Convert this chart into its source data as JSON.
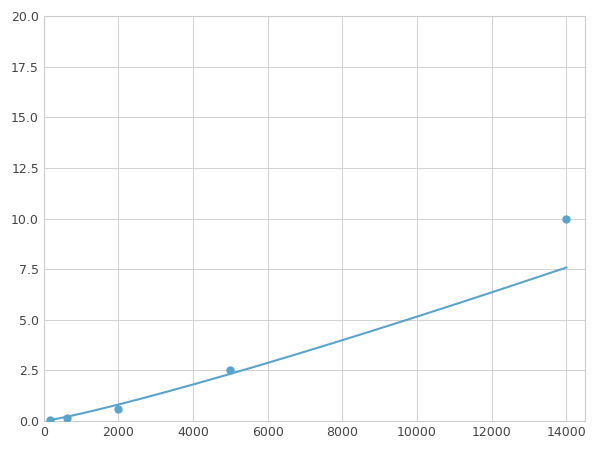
{
  "x_points": [
    156,
    625,
    2000,
    5000,
    14000
  ],
  "y_points": [
    0.07,
    0.13,
    0.6,
    2.5,
    10.0
  ],
  "line_color": "#5BA3C9",
  "marker_color": "#5BA3C9",
  "marker_size": 5,
  "xlim": [
    0,
    14500
  ],
  "ylim": [
    0,
    20
  ],
  "xticks": [
    0,
    2000,
    4000,
    6000,
    8000,
    10000,
    12000,
    14000
  ],
  "yticks": [
    0.0,
    2.5,
    5.0,
    7.5,
    10.0,
    12.5,
    15.0,
    17.5,
    20.0
  ],
  "grid": true,
  "background_color": "#ffffff",
  "figure_bg": "#ffffff",
  "tick_labelsize": 9,
  "tick_labelcolor": "#444444"
}
